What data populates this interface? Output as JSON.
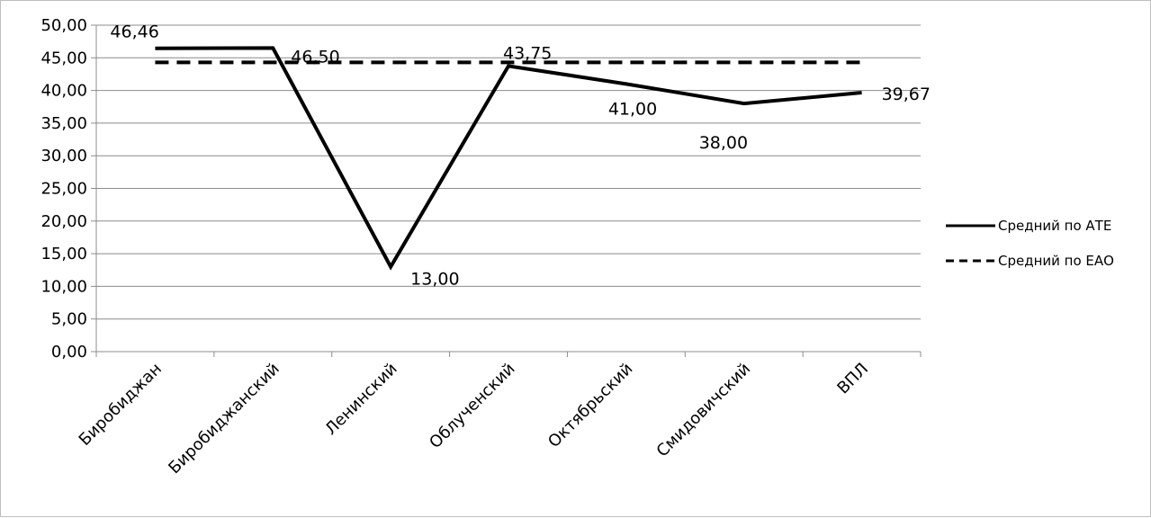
{
  "chart_data": {
    "type": "line",
    "title": "",
    "xlabel": "",
    "ylabel": "",
    "categories": [
      "Биробиджан",
      "Биробиджанский",
      "Ленинский",
      "Облученский",
      "Октябрьский",
      "Смидовичский",
      "ВПЛ"
    ],
    "ylim": [
      0,
      50
    ],
    "ytick_step": 5,
    "ytick_labels": [
      "0,00",
      "5,00",
      "10,00",
      "15,00",
      "20,00",
      "25,00",
      "30,00",
      "35,00",
      "40,00",
      "45,00",
      "50,00"
    ],
    "grid": true,
    "legend_position": "right",
    "series": [
      {
        "name": "Средний по АТЕ",
        "style": "solid",
        "color": "#000000",
        "values": [
          46.46,
          46.5,
          13.0,
          43.75,
          41.0,
          38.0,
          39.67
        ],
        "labels": [
          "46,46",
          "46,50",
          "13,00",
          "43,75",
          "41,00",
          "38,00",
          "39,67"
        ]
      },
      {
        "name": "Средний по ЕАО",
        "style": "dashed",
        "color": "#000000",
        "values": [
          44.3,
          44.3,
          44.3,
          44.3,
          44.3,
          44.3,
          44.3
        ]
      }
    ]
  }
}
